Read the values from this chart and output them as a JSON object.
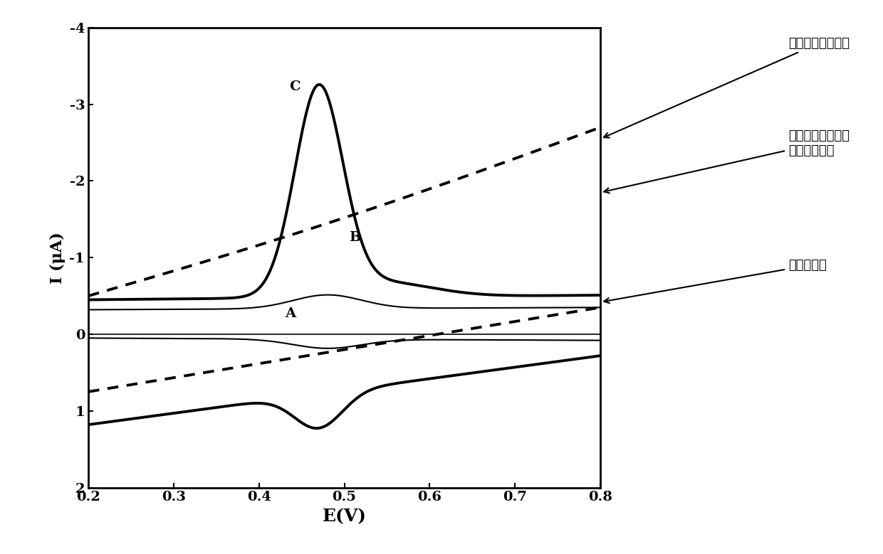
{
  "title": "",
  "xlabel": "E(V)",
  "ylabel": "I (μA)",
  "xlim": [
    0.2,
    0.8
  ],
  "ylim": [
    2.0,
    -4.0
  ],
  "xticks": [
    0.2,
    0.3,
    0.4,
    0.5,
    0.6,
    0.7,
    0.8
  ],
  "yticks": [
    -4,
    -3,
    -2,
    -1,
    0,
    1,
    2
  ],
  "label_C": "C",
  "label_B": "B",
  "label_A": "A",
  "legend1": "碳纳米管修饰电极",
  "legend2": "碳纳米管修饰电极\n（空白底液）",
  "legend3": "裸玻碘电极",
  "background_color": "#ffffff",
  "line_color": "#000000"
}
